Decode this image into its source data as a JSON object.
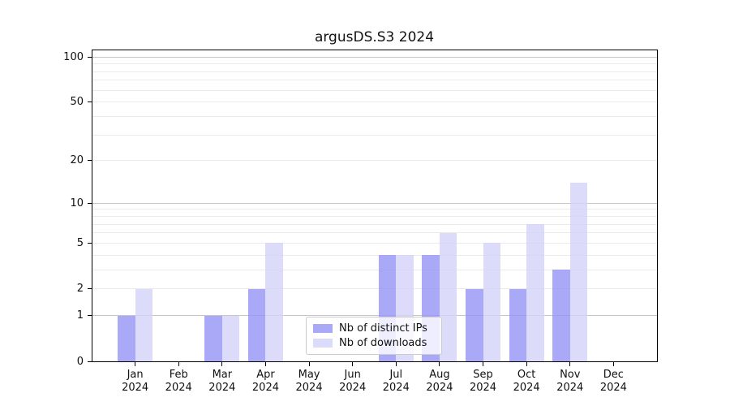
{
  "title": "argusDS.S3 2024",
  "colors": {
    "distinct_ips_bar": "#a9a9f7",
    "downloads_bar": "#dbdbfa",
    "distinct_ips_fill": "rgba(148,148,245,0.8)",
    "downloads_fill": "rgba(211,211,249,0.8)",
    "grid_major": "#c6c6c6",
    "grid_minor": "#eaeaea",
    "spine": "#000000",
    "background": "#ffffff",
    "legend_border": "#cccccc"
  },
  "legend": {
    "entries": [
      "Nb of distinct IPs",
      "Nb of downloads"
    ]
  },
  "chart_data": {
    "type": "bar",
    "title": "argusDS.S3 2024",
    "categories": [
      "Jan 2024",
      "Feb 2024",
      "Mar 2024",
      "Apr 2024",
      "May 2024",
      "Jun 2024",
      "Jul 2024",
      "Aug 2024",
      "Sep 2024",
      "Oct 2024",
      "Nov 2024",
      "Dec 2024"
    ],
    "series": [
      {
        "name": "Nb of distinct IPs",
        "color": "#a9a9f7",
        "fill": "rgba(148,148,245,0.8)",
        "values": [
          1,
          0,
          1,
          2,
          0,
          0,
          4,
          4,
          2,
          2,
          3,
          0
        ]
      },
      {
        "name": "Nb of downloads",
        "color": "#dbdbfa",
        "fill": "rgba(211,211,249,0.8)",
        "values": [
          2,
          0,
          1,
          5,
          0,
          0,
          4,
          6,
          5,
          7,
          14,
          0
        ]
      }
    ],
    "xlabel": "",
    "ylabel": "",
    "yscale": "log1p",
    "ylim": [
      0,
      112
    ],
    "ytick_values": [
      0,
      1,
      2,
      5,
      10,
      20,
      50,
      100
    ],
    "ytick_labels": [
      "0",
      "1",
      "2",
      "5",
      "10",
      "20",
      "50",
      "100"
    ],
    "grid": {
      "major": [
        1,
        10,
        100
      ],
      "minor": [
        2,
        3,
        4,
        5,
        6,
        7,
        8,
        9,
        20,
        30,
        40,
        50,
        60,
        70,
        80,
        90
      ]
    },
    "legend_position": "lower center",
    "bar_group_width": 0.8
  }
}
